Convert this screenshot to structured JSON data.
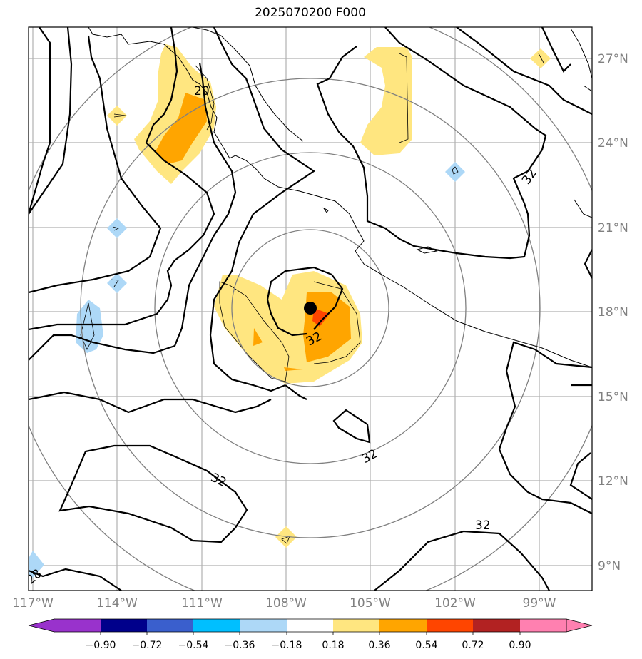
{
  "title": "2025070200 F000",
  "map": {
    "lon_labels": [
      "117°W",
      "114°W",
      "111°W",
      "108°W",
      "105°W",
      "102°W",
      "99°W"
    ],
    "lat_labels": [
      "27°N",
      "24°N",
      "21°N",
      "18°N",
      "15°N",
      "12°N",
      "9°N"
    ],
    "contour_labels": [
      "32",
      "32",
      "32",
      "32",
      "32",
      "20",
      "28"
    ],
    "storm_center": {
      "lon": -107.1,
      "lat": 18.15
    },
    "colors": {
      "contour": "#000000",
      "range_rings": "#808080",
      "grid": "#b0b0b0",
      "coastline": "#000000"
    }
  },
  "colorbar": {
    "labels": [
      "−0.90",
      "−0.72",
      "−0.54",
      "−0.36",
      "−0.18",
      "0.18",
      "0.36",
      "0.54",
      "0.72",
      "0.90"
    ],
    "colors": [
      "#9932cc",
      "#00008b",
      "#3a5fcd",
      "#00bfff",
      "#add8f7",
      "#ffffff",
      "#ffe680",
      "#ffa500",
      "#ff4500",
      "#b22222",
      "#ff80b0"
    ]
  }
}
